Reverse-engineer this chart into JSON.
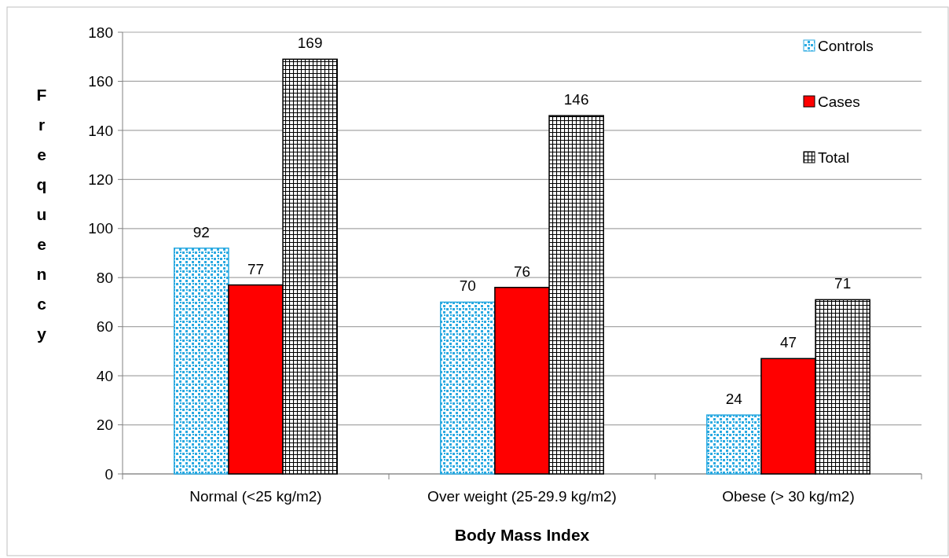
{
  "chart_data": {
    "type": "bar",
    "xlabel": "Body Mass Index",
    "ylabel": "Frequency",
    "categories": [
      "Normal (<25 kg/m2)",
      "Over weight (25-29.9 kg/m2)",
      "Obese (> 30 kg/m2)"
    ],
    "series": [
      {
        "name": "Controls",
        "color": "#29a9e1",
        "values": [
          92,
          70,
          24
        ]
      },
      {
        "name": "Cases",
        "color": "#ff0000",
        "values": [
          77,
          76,
          47
        ]
      },
      {
        "name": "Total",
        "color": "#000000",
        "values": [
          169,
          146,
          71
        ]
      }
    ],
    "ylim": [
      0,
      180
    ],
    "yticks": [
      0,
      20,
      40,
      60,
      80,
      100,
      120,
      140,
      160,
      180
    ],
    "grid": "y",
    "legend": "top right",
    "data_labels": true
  }
}
